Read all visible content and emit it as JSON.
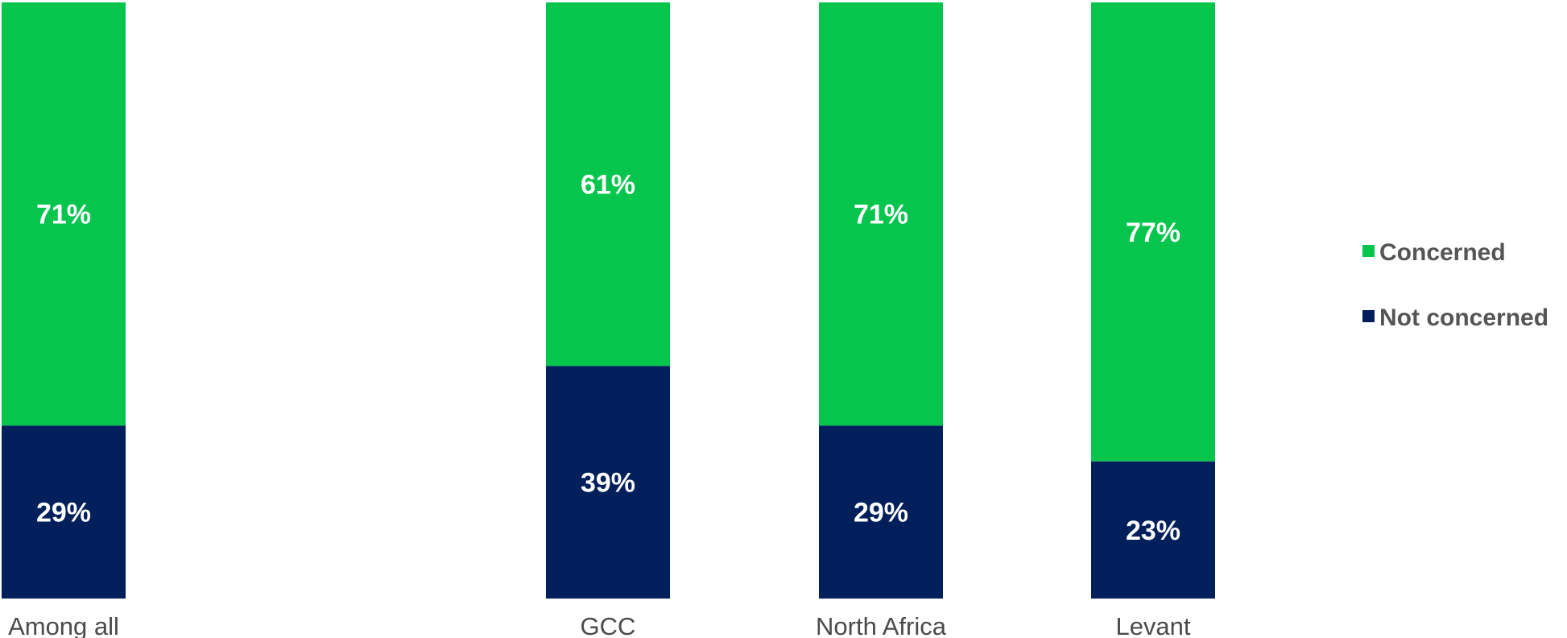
{
  "chart_data": {
    "type": "bar",
    "stacked": true,
    "categories": [
      "Among all",
      "GCC",
      "North Africa",
      "Levant"
    ],
    "series": [
      {
        "name": "Concerned",
        "values": [
          71,
          61,
          71,
          77
        ],
        "labels": [
          "71%",
          "61%",
          "71%",
          "77%"
        ],
        "color": "#06c54d"
      },
      {
        "name": "Not concerned",
        "values": [
          29,
          39,
          29,
          23
        ],
        "labels": [
          "29%",
          "39%",
          "29%",
          "23%"
        ],
        "color": "#001f5b"
      }
    ],
    "ylim": [
      0,
      100
    ],
    "grid": false,
    "legend": "right"
  }
}
